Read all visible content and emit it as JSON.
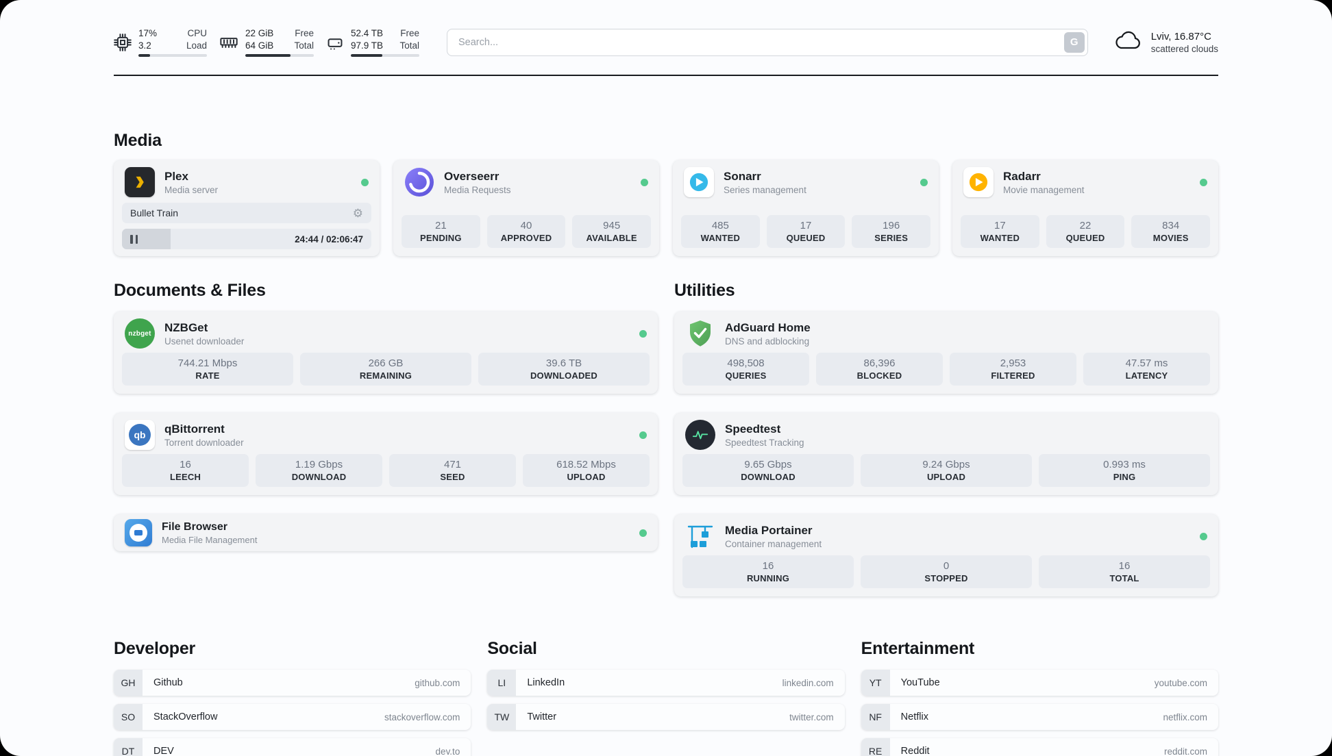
{
  "topbar": {
    "cpu": {
      "value_top": "17%",
      "label_top": "CPU",
      "value_bottom": "3.2",
      "label_bottom": "Load",
      "bar_pct": 17
    },
    "ram": {
      "value_top": "22 GiB",
      "label_top": "Free",
      "value_bottom": "64 GiB",
      "label_bottom": "Total",
      "bar_pct": 66
    },
    "disk": {
      "value_top": "52.4 TB",
      "label_top": "Free",
      "value_bottom": "97.9 TB",
      "label_bottom": "Total",
      "bar_pct": 46
    },
    "search": {
      "placeholder": "Search...",
      "button": "G"
    },
    "weather": {
      "location": "Lviv, 16.87°C",
      "condition": "scattered clouds"
    }
  },
  "media": {
    "heading": "Media",
    "plex": {
      "name": "Plex",
      "subtitle": "Media server",
      "now_playing": {
        "title": "Bullet Train",
        "time": "24:44 / 02:06:47",
        "progress_pct": 19.5
      }
    },
    "overseerr": {
      "name": "Overseerr",
      "subtitle": "Media Requests",
      "stats": [
        {
          "value": "21",
          "label": "PENDING"
        },
        {
          "value": "40",
          "label": "APPROVED"
        },
        {
          "value": "945",
          "label": "AVAILABLE"
        }
      ]
    },
    "sonarr": {
      "name": "Sonarr",
      "subtitle": "Series management",
      "stats": [
        {
          "value": "485",
          "label": "WANTED"
        },
        {
          "value": "17",
          "label": "QUEUED"
        },
        {
          "value": "196",
          "label": "SERIES"
        }
      ]
    },
    "radarr": {
      "name": "Radarr",
      "subtitle": "Movie management",
      "stats": [
        {
          "value": "17",
          "label": "WANTED"
        },
        {
          "value": "22",
          "label": "QUEUED"
        },
        {
          "value": "834",
          "label": "MOVIES"
        }
      ]
    }
  },
  "documents": {
    "heading": "Documents & Files",
    "nzbget": {
      "name": "NZBGet",
      "subtitle": "Usenet downloader",
      "icon_label": "nzbget",
      "stats": [
        {
          "value": "744.21 Mbps",
          "label": "RATE"
        },
        {
          "value": "266 GB",
          "label": "REMAINING"
        },
        {
          "value": "39.6 TB",
          "label": "DOWNLOADED"
        }
      ]
    },
    "qbittorrent": {
      "name": "qBittorrent",
      "subtitle": "Torrent downloader",
      "icon_label": "qb",
      "stats": [
        {
          "value": "16",
          "label": "LEECH"
        },
        {
          "value": "1.19 Gbps",
          "label": "DOWNLOAD"
        },
        {
          "value": "471",
          "label": "SEED"
        },
        {
          "value": "618.52 Mbps",
          "label": "UPLOAD"
        }
      ]
    },
    "filebrowser": {
      "name": "File Browser",
      "subtitle": "Media File Management"
    }
  },
  "utilities": {
    "heading": "Utilities",
    "adguard": {
      "name": "AdGuard Home",
      "subtitle": "DNS and adblocking",
      "stats": [
        {
          "value": "498,508",
          "label": "QUERIES"
        },
        {
          "value": "86,396",
          "label": "BLOCKED"
        },
        {
          "value": "2,953",
          "label": "FILTERED"
        },
        {
          "value": "47.57 ms",
          "label": "LATENCY"
        }
      ]
    },
    "speedtest": {
      "name": "Speedtest",
      "subtitle": "Speedtest Tracking",
      "stats": [
        {
          "value": "9.65 Gbps",
          "label": "DOWNLOAD"
        },
        {
          "value": "9.24 Gbps",
          "label": "UPLOAD"
        },
        {
          "value": "0.993 ms",
          "label": "PING"
        }
      ]
    },
    "portainer": {
      "name": "Media Portainer",
      "subtitle": "Container management",
      "stats": [
        {
          "value": "16",
          "label": "RUNNING"
        },
        {
          "value": "0",
          "label": "STOPPED"
        },
        {
          "value": "16",
          "label": "TOTAL"
        }
      ]
    }
  },
  "bookmarks": {
    "developer": {
      "heading": "Developer",
      "items": [
        {
          "abbr": "GH",
          "name": "Github",
          "url": "github.com"
        },
        {
          "abbr": "SO",
          "name": "StackOverflow",
          "url": "stackoverflow.com"
        },
        {
          "abbr": "DT",
          "name": "DEV",
          "url": "dev.to"
        }
      ]
    },
    "social": {
      "heading": "Social",
      "items": [
        {
          "abbr": "LI",
          "name": "LinkedIn",
          "url": "linkedin.com"
        },
        {
          "abbr": "TW",
          "name": "Twitter",
          "url": "twitter.com"
        }
      ]
    },
    "entertainment": {
      "heading": "Entertainment",
      "items": [
        {
          "abbr": "YT",
          "name": "YouTube",
          "url": "youtube.com"
        },
        {
          "abbr": "NF",
          "name": "Netflix",
          "url": "netflix.com"
        },
        {
          "abbr": "RE",
          "name": "Reddit",
          "url": "reddit.com"
        }
      ]
    }
  },
  "colors": {
    "accent_green": "#55ca8e",
    "plex_yellow": "#ebaf00"
  }
}
